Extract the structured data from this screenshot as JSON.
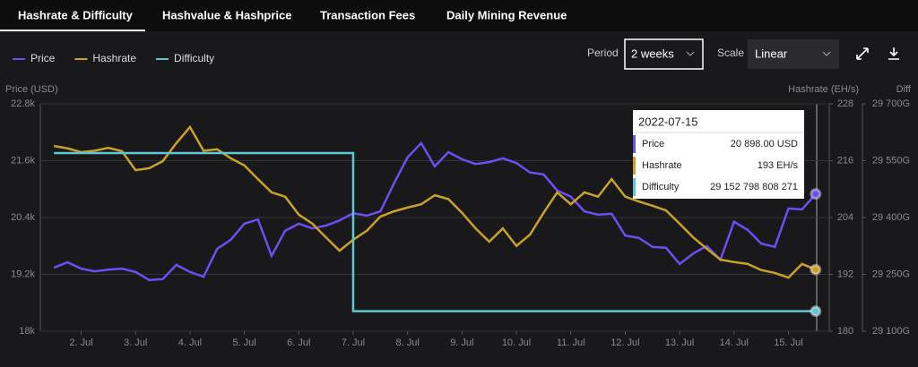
{
  "tabs": [
    "Hashrate & Difficulty",
    "Hashvalue & Hashprice",
    "Transaction Fees",
    "Daily Mining Revenue"
  ],
  "controls": {
    "period_label": "Period",
    "period_value": "2 weeks",
    "scale_label": "Scale",
    "scale_value": "Linear"
  },
  "chart_data": {
    "type": "line",
    "y_label": "Price (USD)",
    "y2_label": "Hashrate (EH/s)",
    "y3_label": "Diff",
    "x": [
      1.5,
      1.75,
      2,
      2.25,
      2.5,
      2.75,
      3,
      3.25,
      3.5,
      3.75,
      4,
      4.25,
      4.5,
      4.75,
      5,
      5.25,
      5.5,
      5.75,
      6,
      6.25,
      6.5,
      6.75,
      7,
      7.25,
      7.5,
      7.75,
      8,
      8.25,
      8.5,
      8.75,
      9,
      9.25,
      9.5,
      9.75,
      10,
      10.25,
      10.5,
      10.75,
      11,
      11.25,
      11.5,
      11.75,
      12,
      12.25,
      12.5,
      12.75,
      13,
      13.25,
      13.5,
      13.75,
      14,
      14.25,
      14.5,
      14.75,
      15,
      15.25,
      15.5
    ],
    "xlim": [
      1.25,
      15.75
    ],
    "xticks": [
      {
        "value": 2,
        "label": "2. Jul"
      },
      {
        "value": 3,
        "label": "3. Jul"
      },
      {
        "value": 4,
        "label": "4. Jul"
      },
      {
        "value": 5,
        "label": "5. Jul"
      },
      {
        "value": 6,
        "label": "6. Jul"
      },
      {
        "value": 7,
        "label": "7. Jul"
      },
      {
        "value": 8,
        "label": "8. Jul"
      },
      {
        "value": 9,
        "label": "9. Jul"
      },
      {
        "value": 10,
        "label": "10. Jul"
      },
      {
        "value": 11,
        "label": "11. Jul"
      },
      {
        "value": 12,
        "label": "12. Jul"
      },
      {
        "value": 13,
        "label": "13. Jul"
      },
      {
        "value": 14,
        "label": "14. Jul"
      },
      {
        "value": 15,
        "label": "15. Jul"
      }
    ],
    "ylim": [
      18000,
      22800
    ],
    "yticks": [
      {
        "value": 18000,
        "label": "18k"
      },
      {
        "value": 19200,
        "label": "19.2k"
      },
      {
        "value": 20400,
        "label": "20.4k"
      },
      {
        "value": 21600,
        "label": "21.6k"
      },
      {
        "value": 22800,
        "label": "22.8k"
      }
    ],
    "y2lim": [
      180,
      228
    ],
    "y2ticks": [
      180,
      192,
      204,
      216,
      228
    ],
    "y3lim": [
      29100,
      29700
    ],
    "y3ticks": [
      {
        "value": 29100,
        "label": "29 100G"
      },
      {
        "value": 29250,
        "label": "29 250G"
      },
      {
        "value": 29400,
        "label": "29 400G"
      },
      {
        "value": 29550,
        "label": "29 550G"
      },
      {
        "value": 29700,
        "label": "29 700G"
      }
    ],
    "grid": true,
    "series": [
      {
        "name": "Price",
        "color": "#6d4ef2",
        "values": [
          19340,
          19455,
          19320,
          19265,
          19300,
          19320,
          19250,
          19080,
          19100,
          19400,
          19250,
          19150,
          19740,
          19930,
          20270,
          20360,
          19590,
          20120,
          20270,
          20170,
          20230,
          20340,
          20490,
          20440,
          20530,
          21120,
          21670,
          21970,
          21480,
          21780,
          21630,
          21530,
          21570,
          21650,
          21550,
          21350,
          21310,
          20970,
          20840,
          20530,
          20460,
          20480,
          20020,
          19970,
          19780,
          19760,
          19420,
          19640,
          19800,
          19510,
          20310,
          20140,
          19850,
          19780,
          20590,
          20570,
          20898
        ]
      },
      {
        "name": "Hashrate",
        "color": "#c9a227",
        "axis": "y2",
        "values": [
          219.1,
          218.6,
          217.8,
          218.1,
          218.7,
          218.0,
          214.0,
          214.4,
          215.9,
          219.7,
          223.1,
          218.1,
          218.4,
          216.5,
          215.0,
          212.1,
          209.3,
          208.4,
          204.6,
          202.7,
          199.8,
          197.0,
          199.3,
          201.2,
          204.2,
          205.3,
          206.1,
          206.8,
          208.7,
          207.9,
          205.0,
          201.7,
          198.9,
          201.7,
          198.0,
          200.4,
          205.0,
          209.3,
          206.8,
          209.3,
          208.4,
          212.1,
          208.4,
          207.4,
          206.5,
          205.5,
          202.7,
          199.8,
          197.4,
          195.1,
          194.6,
          194.2,
          192.9,
          192.3,
          191.3,
          194.2,
          193
        ]
      },
      {
        "name": "Difficulty",
        "color": "#5fc6d6",
        "axis": "y3",
        "step": true,
        "values": [
          29570,
          29570,
          29570,
          29570,
          29570,
          29570,
          29570,
          29570,
          29570,
          29570,
          29570,
          29570,
          29570,
          29570,
          29570,
          29570,
          29570,
          29570,
          29570,
          29570,
          29570,
          29570,
          29152.798808271,
          29152.798808271,
          29152.798808271,
          29152.798808271,
          29152.798808271,
          29152.798808271,
          29152.798808271,
          29152.798808271,
          29152.798808271,
          29152.798808271,
          29152.798808271,
          29152.798808271,
          29152.798808271,
          29152.798808271,
          29152.798808271,
          29152.798808271,
          29152.798808271,
          29152.798808271,
          29152.798808271,
          29152.798808271,
          29152.798808271,
          29152.798808271,
          29152.798808271,
          29152.798808271,
          29152.798808271,
          29152.798808271,
          29152.798808271,
          29152.798808271,
          29152.798808271,
          29152.798808271,
          29152.798808271,
          29152.798808271,
          29152.798808271,
          29152.798808271,
          29152.798808271
        ]
      }
    ],
    "tooltip": {
      "title": "2022-07-15",
      "rows": [
        {
          "label": "Price",
          "value": "20 898.00 USD"
        },
        {
          "label": "Hashrate",
          "value": "193 EH/s"
        },
        {
          "label": "Difficulty",
          "value": "29 152 798 808 271"
        }
      ]
    }
  }
}
